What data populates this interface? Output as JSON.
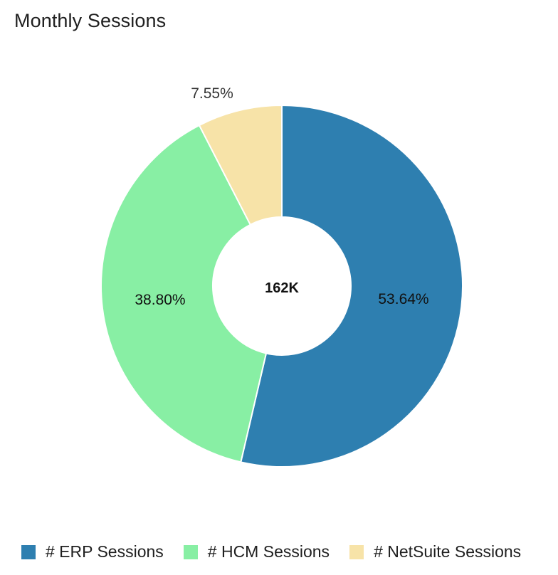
{
  "title": "Monthly Sessions",
  "center_label": "162K",
  "chart_data": {
    "type": "pie",
    "title": "Monthly Sessions",
    "donut": true,
    "total_label": "162K",
    "categories": [
      "# ERP Sessions",
      "# HCM Sessions",
      "# NetSuite Sessions"
    ],
    "values": [
      53.64,
      38.8,
      7.55
    ],
    "value_labels": [
      "53.64%",
      "38.80%",
      "7.55%"
    ],
    "colors": [
      "#2e7fb0",
      "#88efa4",
      "#f7e3a8"
    ],
    "legend_placement": "bottom"
  },
  "legend": {
    "items": [
      {
        "label": "# ERP Sessions",
        "color": "#2e7fb0"
      },
      {
        "label": "# HCM Sessions",
        "color": "#88efa4"
      },
      {
        "label": "# NetSuite Sessions",
        "color": "#f7e3a8"
      }
    ]
  }
}
